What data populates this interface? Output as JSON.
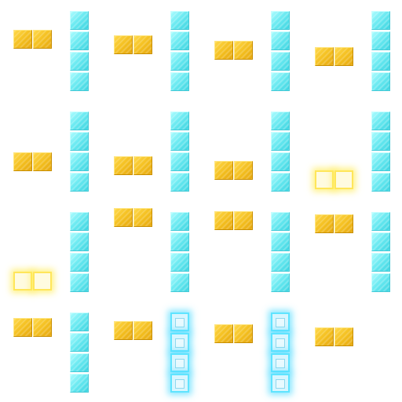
{
  "board": {
    "colors": {
      "gold": "#f4c020",
      "cyan": "#66e8f0",
      "glow_gold": "#ffe65a",
      "glow_cyan": "#5fe4ff",
      "background": "#ffffff"
    },
    "pieces": [
      {
        "kind": "gold-domino",
        "orientation": "horizontal",
        "cells": 2,
        "glow": false
      },
      {
        "kind": "cyan-bar",
        "orientation": "vertical",
        "cells": 4,
        "glow": false
      },
      {
        "kind": "gold-domino",
        "orientation": "horizontal",
        "cells": 2,
        "glow": false
      },
      {
        "kind": "cyan-bar",
        "orientation": "vertical",
        "cells": 4,
        "glow": false
      },
      {
        "kind": "gold-domino",
        "orientation": "horizontal",
        "cells": 2,
        "glow": false
      },
      {
        "kind": "cyan-bar",
        "orientation": "vertical",
        "cells": 4,
        "glow": false
      },
      {
        "kind": "gold-domino",
        "orientation": "horizontal",
        "cells": 2,
        "glow": false
      },
      {
        "kind": "cyan-bar",
        "orientation": "vertical",
        "cells": 4,
        "glow": false
      },
      {
        "kind": "gold-domino",
        "orientation": "horizontal",
        "cells": 2,
        "glow": false
      },
      {
        "kind": "cyan-bar",
        "orientation": "vertical",
        "cells": 4,
        "glow": false
      },
      {
        "kind": "gold-domino",
        "orientation": "horizontal",
        "cells": 2,
        "glow": false
      },
      {
        "kind": "cyan-bar",
        "orientation": "vertical",
        "cells": 4,
        "glow": false
      },
      {
        "kind": "gold-domino",
        "orientation": "horizontal",
        "cells": 2,
        "glow": false
      },
      {
        "kind": "cyan-bar",
        "orientation": "vertical",
        "cells": 4,
        "glow": false
      },
      {
        "kind": "gold-domino",
        "orientation": "horizontal",
        "cells": 2,
        "glow": true
      },
      {
        "kind": "cyan-bar",
        "orientation": "vertical",
        "cells": 4,
        "glow": false
      },
      {
        "kind": "gold-domino",
        "orientation": "horizontal",
        "cells": 2,
        "glow": true
      },
      {
        "kind": "cyan-bar",
        "orientation": "vertical",
        "cells": 4,
        "glow": false
      },
      {
        "kind": "gold-domino",
        "orientation": "horizontal",
        "cells": 2,
        "glow": false
      },
      {
        "kind": "cyan-bar",
        "orientation": "vertical",
        "cells": 4,
        "glow": false
      },
      {
        "kind": "gold-domino",
        "orientation": "horizontal",
        "cells": 2,
        "glow": false
      },
      {
        "kind": "cyan-bar",
        "orientation": "vertical",
        "cells": 4,
        "glow": false
      },
      {
        "kind": "gold-domino",
        "orientation": "horizontal",
        "cells": 2,
        "glow": false
      },
      {
        "kind": "cyan-bar",
        "orientation": "vertical",
        "cells": 4,
        "glow": false
      },
      {
        "kind": "gold-domino",
        "orientation": "horizontal",
        "cells": 2,
        "glow": false
      },
      {
        "kind": "cyan-bar",
        "orientation": "vertical",
        "cells": 4,
        "glow": false
      },
      {
        "kind": "gold-domino",
        "orientation": "horizontal",
        "cells": 2,
        "glow": false
      },
      {
        "kind": "cyan-bar",
        "orientation": "vertical",
        "cells": 4,
        "glow": true
      },
      {
        "kind": "gold-domino",
        "orientation": "horizontal",
        "cells": 2,
        "glow": false
      },
      {
        "kind": "cyan-bar",
        "orientation": "vertical",
        "cells": 4,
        "glow": true
      },
      {
        "kind": "gold-domino",
        "orientation": "horizontal",
        "cells": 2,
        "glow": false
      }
    ]
  }
}
